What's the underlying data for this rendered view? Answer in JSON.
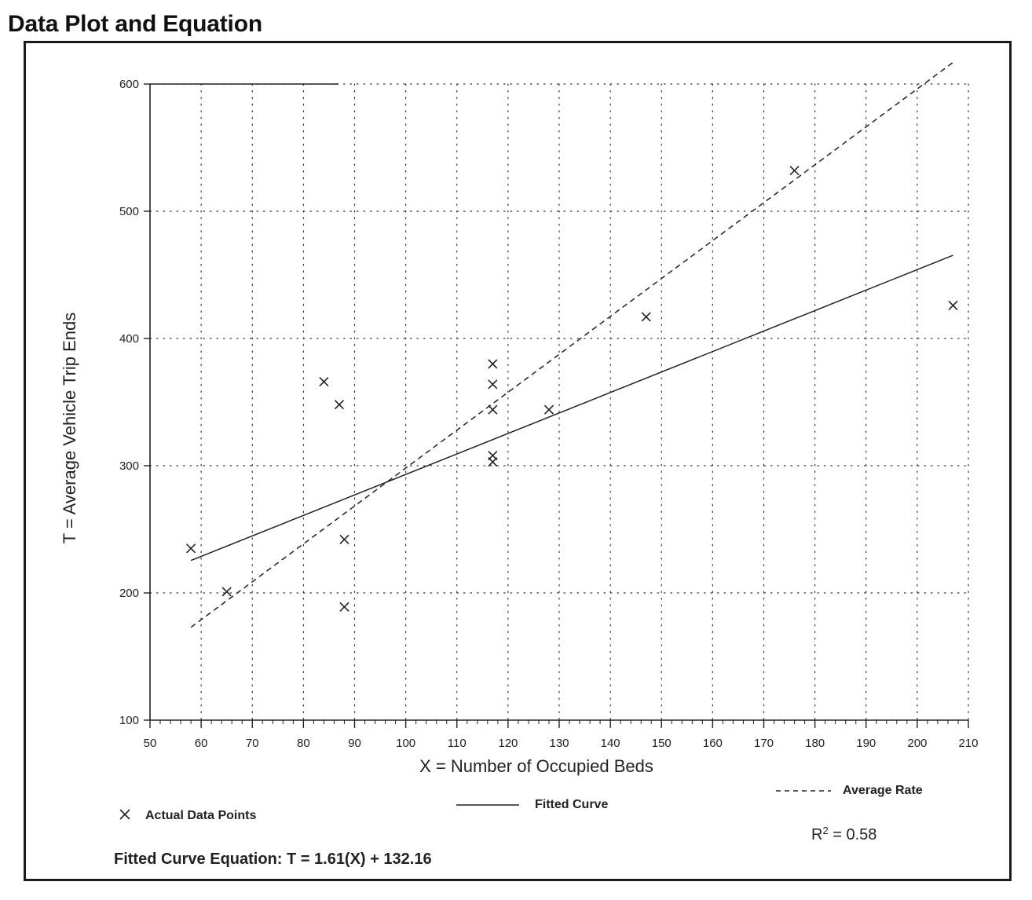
{
  "title": "Data Plot and Equation",
  "chart_data": {
    "type": "scatter",
    "xlabel": "X = Number of Occupied Beds",
    "ylabel": "T = Average Vehicle Trip Ends",
    "xlim": [
      50,
      210
    ],
    "ylim": [
      100,
      600
    ],
    "xticks": [
      50,
      60,
      70,
      80,
      90,
      100,
      110,
      120,
      130,
      140,
      150,
      160,
      170,
      180,
      190,
      200,
      210
    ],
    "yticks": [
      100,
      200,
      300,
      400,
      500,
      600
    ],
    "grid": true,
    "series": [
      {
        "name": "Actual Data Points",
        "marker": "x",
        "points": [
          {
            "x": 58,
            "y": 235
          },
          {
            "x": 65,
            "y": 201
          },
          {
            "x": 84,
            "y": 366
          },
          {
            "x": 87,
            "y": 348
          },
          {
            "x": 88,
            "y": 242
          },
          {
            "x": 88,
            "y": 189
          },
          {
            "x": 117,
            "y": 380
          },
          {
            "x": 117,
            "y": 364
          },
          {
            "x": 117,
            "y": 344
          },
          {
            "x": 117,
            "y": 308
          },
          {
            "x": 117,
            "y": 303
          },
          {
            "x": 128,
            "y": 344
          },
          {
            "x": 147,
            "y": 417
          },
          {
            "x": 176,
            "y": 532
          },
          {
            "x": 207,
            "y": 426
          }
        ]
      },
      {
        "name": "Fitted Curve",
        "style": "solid",
        "line": [
          {
            "x": 58,
            "y": 225.5
          },
          {
            "x": 207,
            "y": 465.4
          }
        ]
      },
      {
        "name": "Average Rate",
        "style": "dashed",
        "line": [
          {
            "x": 58,
            "y": 173
          },
          {
            "x": 207,
            "y": 617
          }
        ]
      }
    ],
    "legend": {
      "points_label": "Actual Data Points",
      "fitted_label": "Fitted Curve",
      "average_label": "Average Rate"
    },
    "equation": "Fitted Curve Equation:  T = 1.61(X) + 132.16",
    "r_squared_prefix": "R",
    "r_squared_sup": "2",
    "r_squared_value": " = 0.58"
  }
}
